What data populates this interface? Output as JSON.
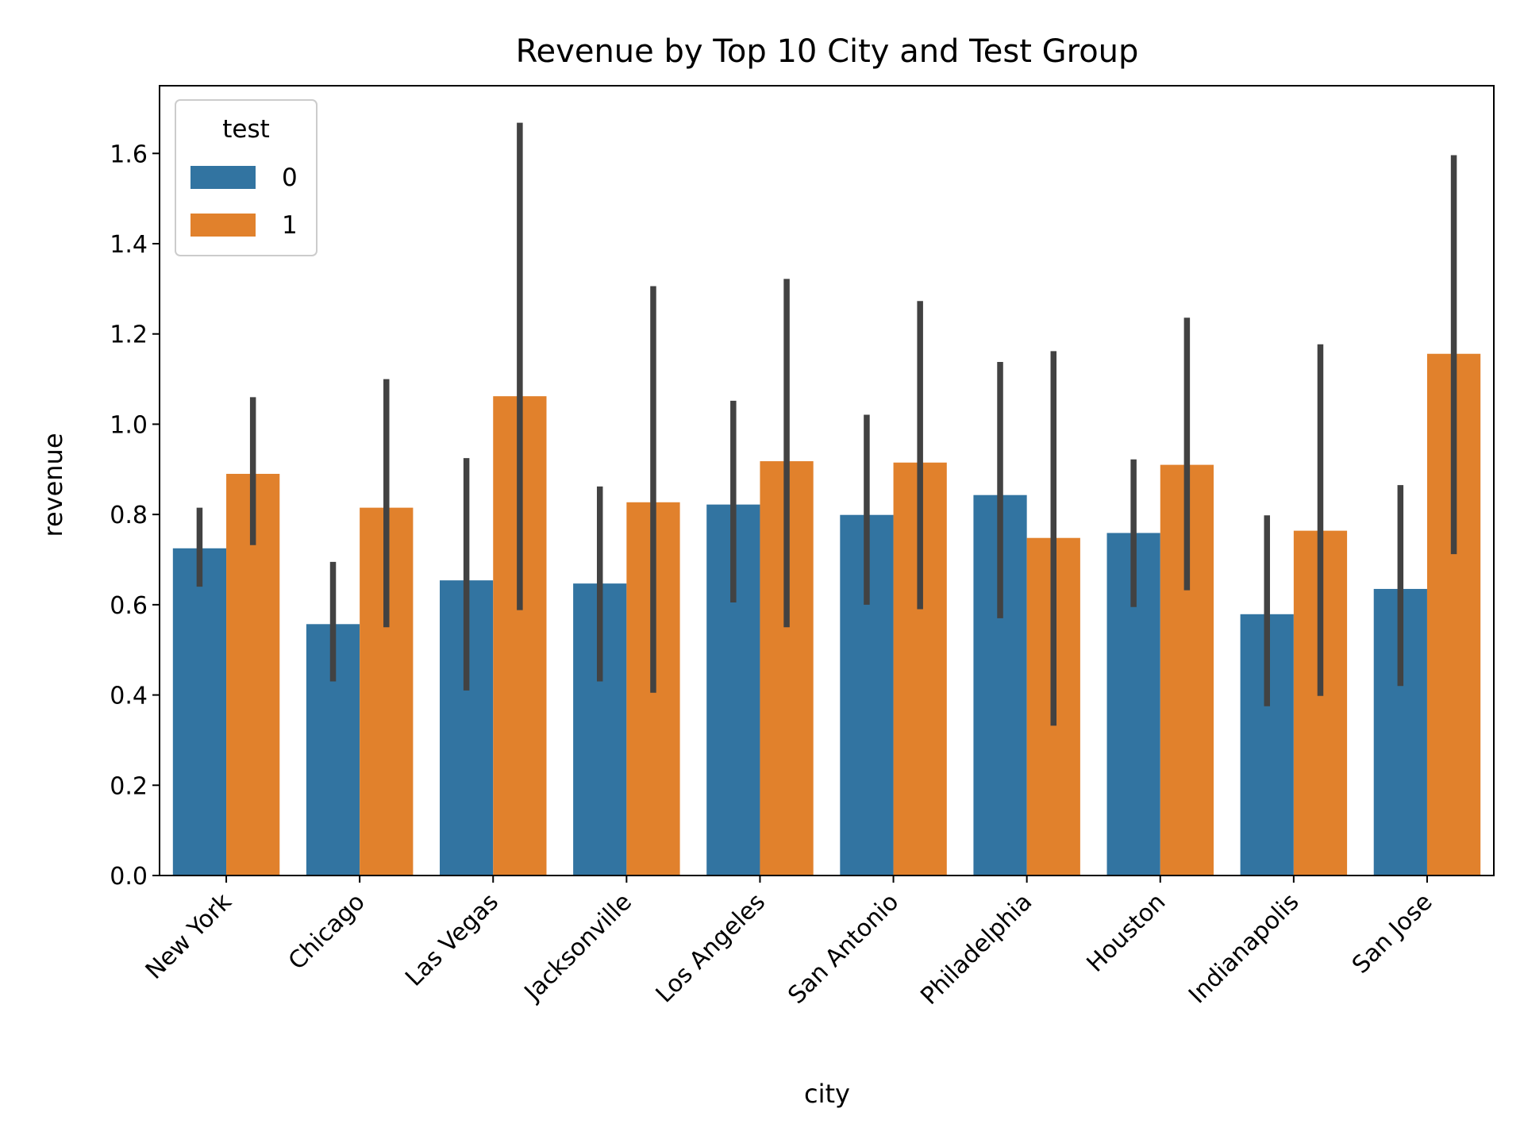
{
  "chart_data": {
    "type": "bar",
    "title": "Revenue by Top 10 City and Test Group",
    "xlabel": "city",
    "ylabel": "revenue",
    "ylim": [
      0,
      1.75
    ],
    "yticks": [
      0.0,
      0.2,
      0.4,
      0.6,
      0.8,
      1.0,
      1.2,
      1.4,
      1.6
    ],
    "ytick_labels": [
      "0.0",
      "0.2",
      "0.4",
      "0.6",
      "0.8",
      "1.0",
      "1.2",
      "1.4",
      "1.6"
    ],
    "grid": false,
    "legend": {
      "title": "test",
      "placement": "top-left"
    },
    "categories": [
      "New York",
      "Chicago",
      "Las Vegas",
      "Jacksonville",
      "Los Angeles",
      "San Antonio",
      "Philadelphia",
      "Houston",
      "Indianapolis",
      "San Jose"
    ],
    "series": [
      {
        "name": "0",
        "color": "#3274a1",
        "values": [
          0.725,
          0.557,
          0.654,
          0.647,
          0.822,
          0.799,
          0.843,
          0.759,
          0.579,
          0.635
        ],
        "ci_low": [
          0.64,
          0.43,
          0.41,
          0.43,
          0.605,
          0.6,
          0.57,
          0.595,
          0.375,
          0.42
        ],
        "ci_high": [
          0.815,
          0.695,
          0.925,
          0.862,
          1.052,
          1.021,
          1.138,
          0.922,
          0.798,
          0.865
        ]
      },
      {
        "name": "1",
        "color": "#e1812c",
        "values": [
          0.89,
          0.815,
          1.062,
          0.827,
          0.918,
          0.915,
          0.748,
          0.91,
          0.764,
          1.156
        ],
        "ci_low": [
          0.732,
          0.55,
          0.588,
          0.405,
          0.55,
          0.59,
          0.332,
          0.632,
          0.398,
          0.712
        ],
        "ci_high": [
          1.06,
          1.1,
          1.668,
          1.306,
          1.322,
          1.273,
          1.162,
          1.236,
          1.177,
          1.596
        ]
      }
    ]
  }
}
